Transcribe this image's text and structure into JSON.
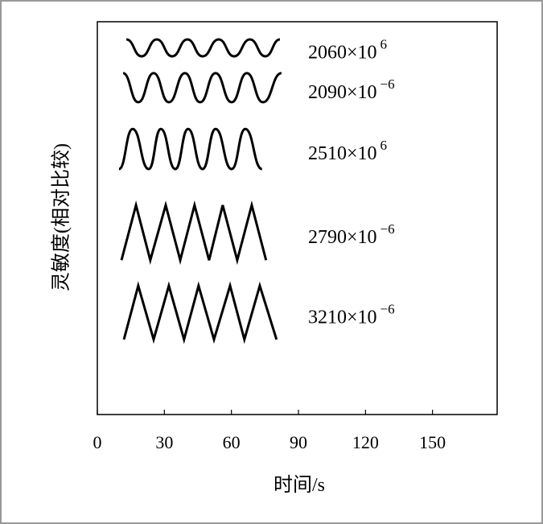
{
  "chart_data": {
    "type": "line",
    "xlabel": "时间/s",
    "ylabel": "灵敏度(相对比较)",
    "xlim": [
      0,
      180
    ],
    "xticks": [
      0,
      30,
      60,
      90,
      120,
      150
    ],
    "ylim": [
      0,
      100
    ],
    "series": [
      {
        "name": "2060×10",
        "exponent": "6",
        "color": "#000000",
        "curve": "smooth",
        "x": [
          13,
          19.8,
          26.6,
          33.5,
          40.3,
          47.1,
          54.3,
          61.2,
          68.3,
          75.2,
          81.7
        ],
        "values": [
          95.5,
          91.2,
          95.5,
          91.2,
          95.5,
          91.2,
          95.5,
          91.2,
          95.5,
          91.2,
          95.5
        ]
      },
      {
        "name": "2090×10",
        "exponent": "−6",
        "color": "#000000",
        "curve": "smooth",
        "x": [
          11.5,
          18.3,
          25.2,
          32,
          39.2,
          46,
          52.9,
          60.1,
          66.9,
          74.1,
          82.4
        ],
        "values": [
          86.9,
          79.5,
          86.9,
          79.5,
          86.9,
          79.5,
          86.9,
          79.5,
          86.9,
          79.5,
          86.9
        ]
      },
      {
        "name": "2510×10",
        "exponent": "6",
        "color": "#000000",
        "curve": "smooth",
        "x": [
          9.7,
          15.8,
          23,
          28.4,
          34.9,
          40.6,
          47.1,
          52.9,
          60.1,
          66.2,
          73.7
        ],
        "values": [
          62.5,
          72.7,
          62.5,
          72.7,
          62.5,
          72.7,
          62.5,
          72.7,
          62.5,
          72.7,
          62.5
        ]
      },
      {
        "name": "2790×10",
        "exponent": "−6",
        "color": "#000000",
        "curve": "linear",
        "x": [
          10.8,
          17.3,
          23.7,
          30.6,
          37.1,
          43.5,
          50,
          56.1,
          62.6,
          69.1,
          75.5
        ],
        "values": [
          39.3,
          53.3,
          39.3,
          53.3,
          39.3,
          53.3,
          39.3,
          53.3,
          39.3,
          53.3,
          39.3
        ]
      },
      {
        "name": "3210×10",
        "exponent": "−6",
        "color": "#000000",
        "curve": "linear",
        "x": [
          11.9,
          18.3,
          25.2,
          32,
          38.8,
          45.3,
          52.2,
          59.4,
          65.8,
          72.7,
          80.2
        ],
        "values": [
          19.1,
          32.8,
          19.1,
          32.8,
          19.1,
          32.8,
          19.1,
          32.8,
          19.1,
          32.8,
          19.1
        ]
      }
    ]
  }
}
